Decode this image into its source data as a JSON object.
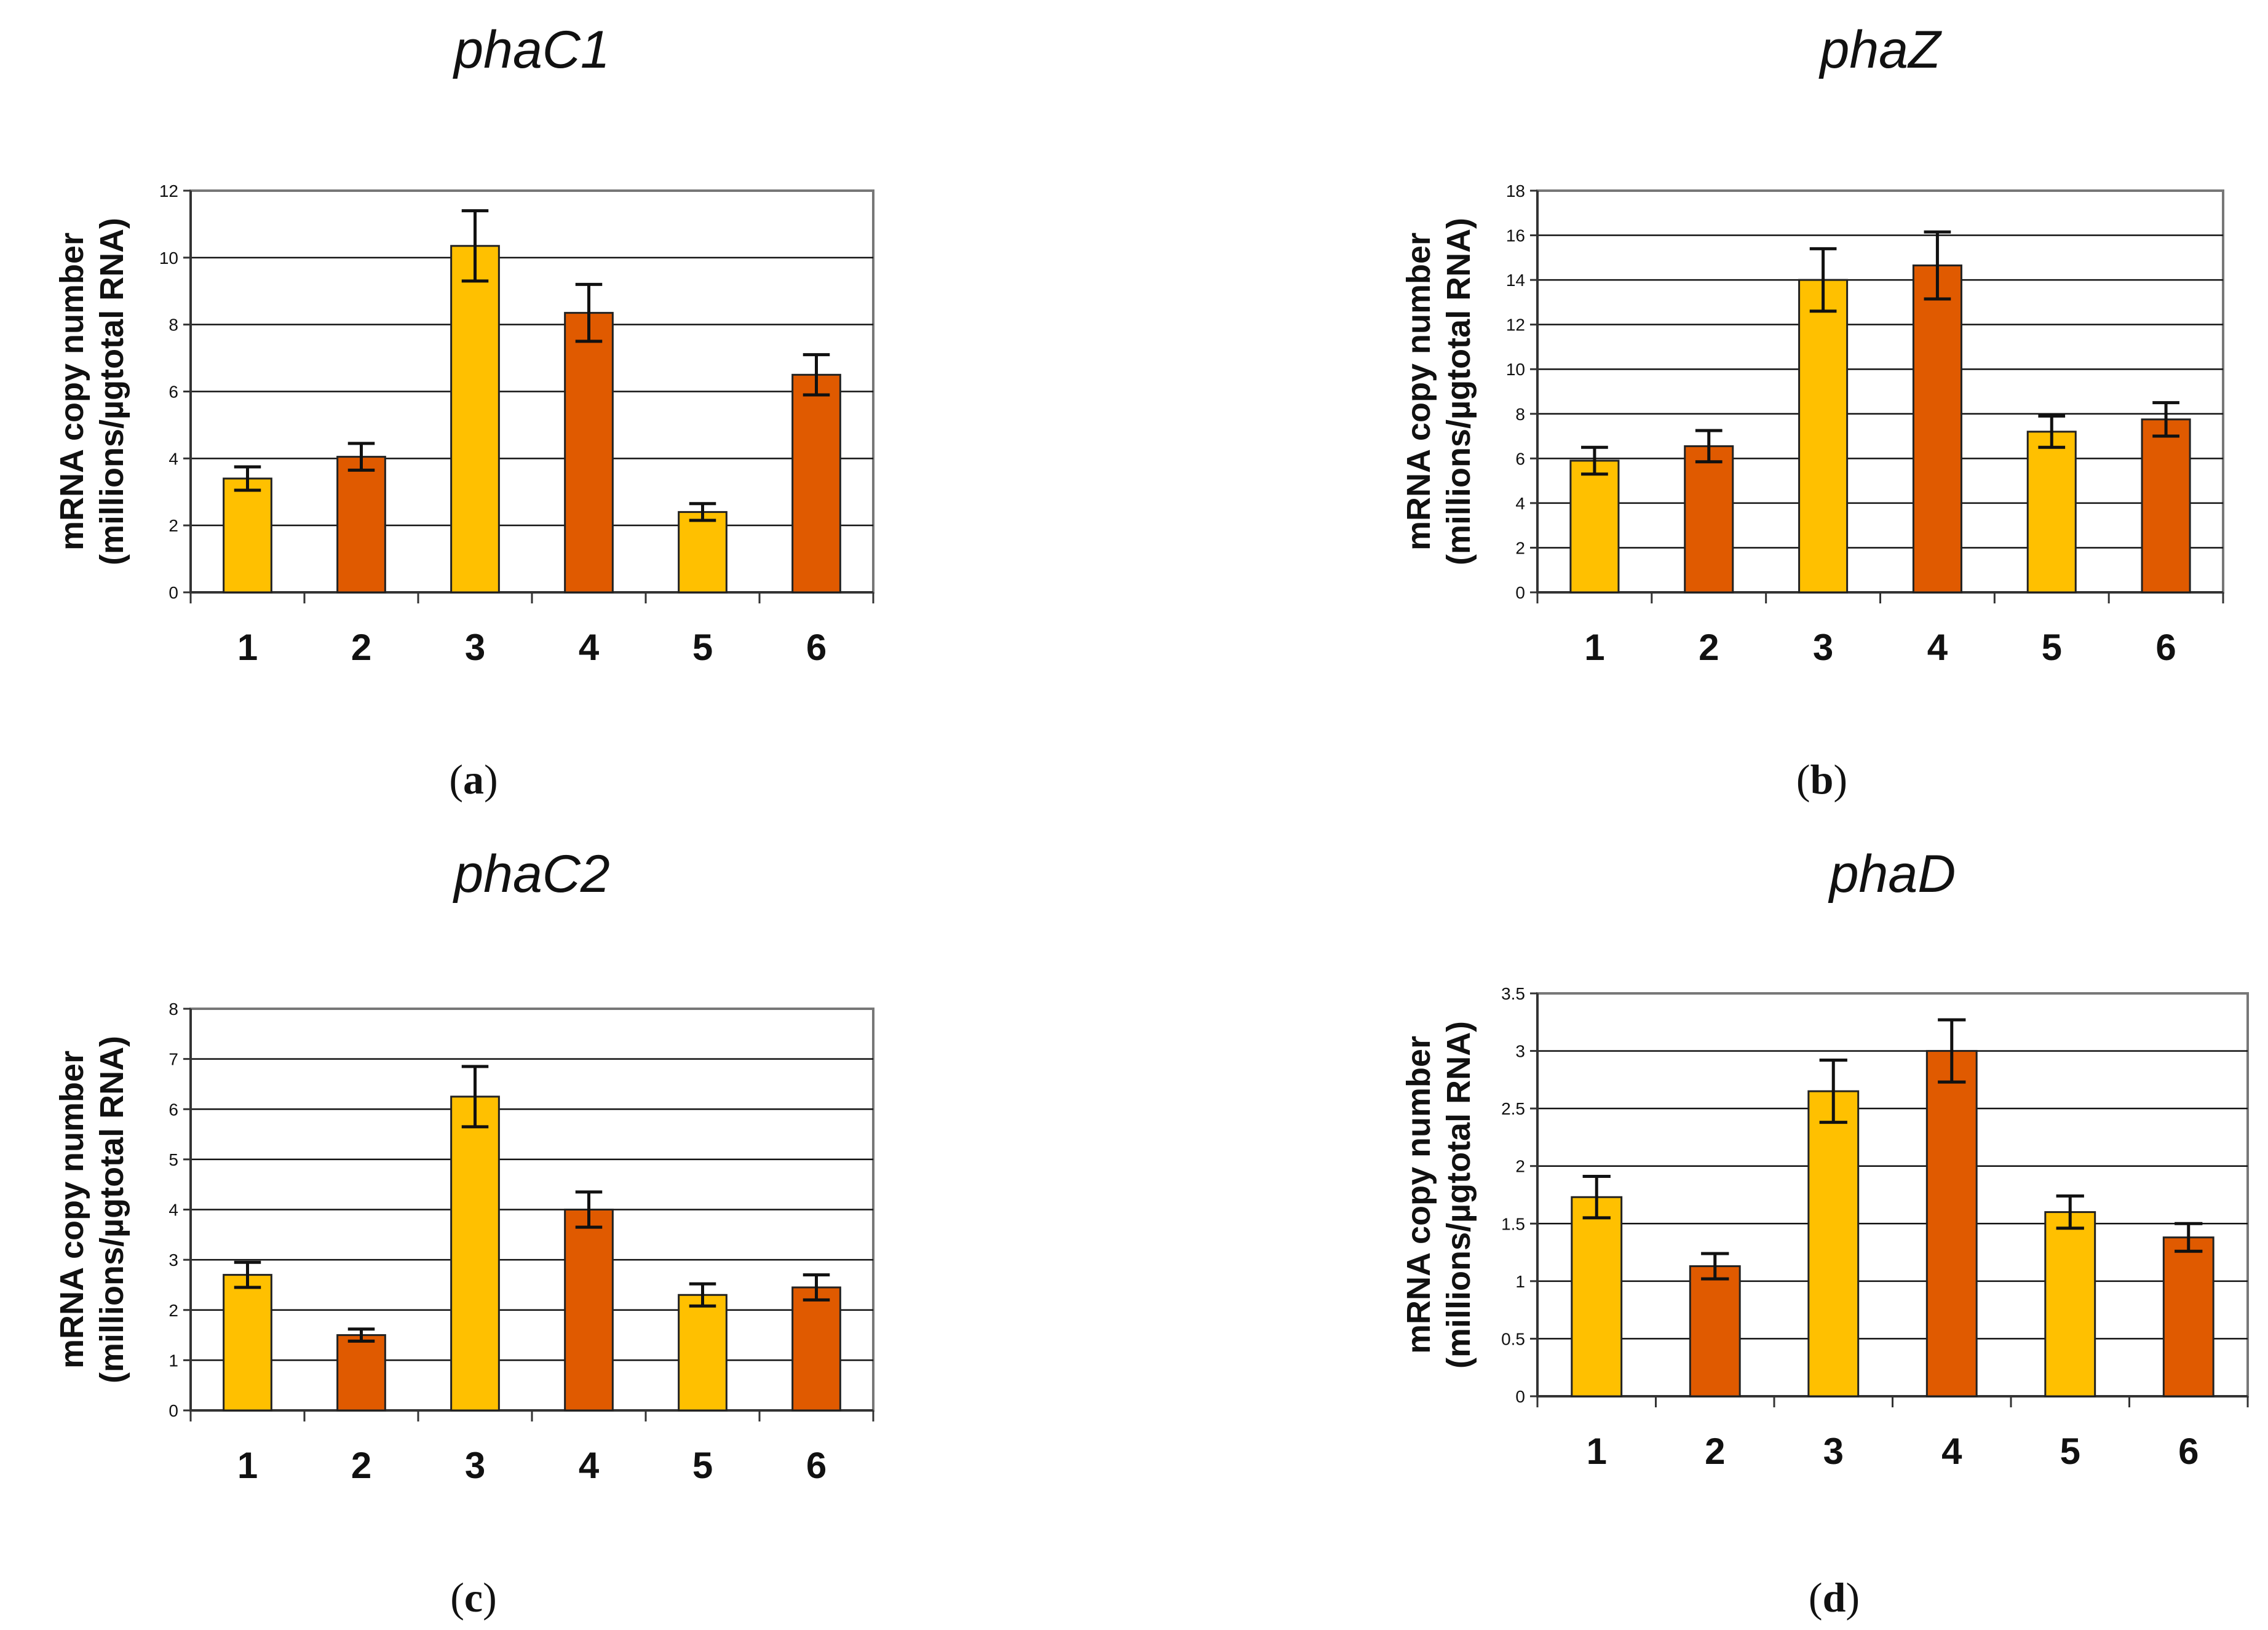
{
  "colors": {
    "yellow": "#FFC000",
    "orange": "#E05A00",
    "grid": "#111111",
    "axis": "#777777"
  },
  "chart_data": [
    {
      "type": "bar",
      "title": "phaC1",
      "panel": "a",
      "ylabel_line1": "mRNA copy number",
      "ylabel_line2": "(millions/µgtotal RNA)",
      "xlabel": "",
      "categories": [
        "1",
        "2",
        "3",
        "4",
        "5",
        "6"
      ],
      "values": [
        3.4,
        4.05,
        10.35,
        8.35,
        2.4,
        6.5
      ],
      "errors": [
        0.35,
        0.4,
        1.05,
        0.85,
        0.25,
        0.6
      ],
      "bar_colors": [
        "yellow",
        "orange",
        "yellow",
        "orange",
        "yellow",
        "orange"
      ],
      "ylim": [
        0,
        12
      ],
      "yticks": [
        "0",
        "2",
        "4",
        "6",
        "8",
        "10",
        "12"
      ],
      "grid": true
    },
    {
      "type": "bar",
      "title": "phaZ",
      "panel": "b",
      "ylabel_line1": "mRNA copy number",
      "ylabel_line2": "(millions/µgtotal RNA)",
      "xlabel": "",
      "categories": [
        "1",
        "2",
        "3",
        "4",
        "5",
        "6"
      ],
      "values": [
        5.9,
        6.55,
        14.0,
        14.65,
        7.2,
        7.75
      ],
      "errors": [
        0.6,
        0.7,
        1.4,
        1.5,
        0.7,
        0.75
      ],
      "bar_colors": [
        "yellow",
        "orange",
        "yellow",
        "orange",
        "yellow",
        "orange"
      ],
      "ylim": [
        0,
        18
      ],
      "yticks": [
        "0",
        "2",
        "4",
        "6",
        "8",
        "10",
        "12",
        "14",
        "16",
        "18"
      ],
      "grid": true
    },
    {
      "type": "bar",
      "title": "phaC2",
      "panel": "c",
      "ylabel_line1": "mRNA copy number",
      "ylabel_line2": "(millions/µgtotal RNA)",
      "xlabel": "",
      "categories": [
        "1",
        "2",
        "3",
        "4",
        "5",
        "6"
      ],
      "values": [
        2.7,
        1.5,
        6.25,
        4.0,
        2.3,
        2.45
      ],
      "errors": [
        0.25,
        0.12,
        0.6,
        0.35,
        0.22,
        0.25
      ],
      "bar_colors": [
        "yellow",
        "orange",
        "yellow",
        "orange",
        "yellow",
        "orange"
      ],
      "ylim": [
        0,
        8
      ],
      "yticks": [
        "0",
        "1",
        "2",
        "3",
        "4",
        "5",
        "6",
        "7",
        "8"
      ],
      "grid": true
    },
    {
      "type": "bar",
      "title": "phaD",
      "panel": "d",
      "ylabel_line1": "mRNA copy number",
      "ylabel_line2": "(millions/µgtotal RNA)",
      "xlabel": "",
      "categories": [
        "1",
        "2",
        "3",
        "4",
        "5",
        "6"
      ],
      "values": [
        1.73,
        1.13,
        2.65,
        3.0,
        1.6,
        1.38
      ],
      "errors": [
        0.18,
        0.11,
        0.27,
        0.27,
        0.14,
        0.12
      ],
      "bar_colors": [
        "yellow",
        "orange",
        "yellow",
        "orange",
        "yellow",
        "orange"
      ],
      "ylim": [
        0,
        3.5
      ],
      "yticks": [
        "0",
        "0.5",
        "1",
        "1.5",
        "2",
        "2.5",
        "3",
        "3.5"
      ],
      "grid": true
    }
  ]
}
